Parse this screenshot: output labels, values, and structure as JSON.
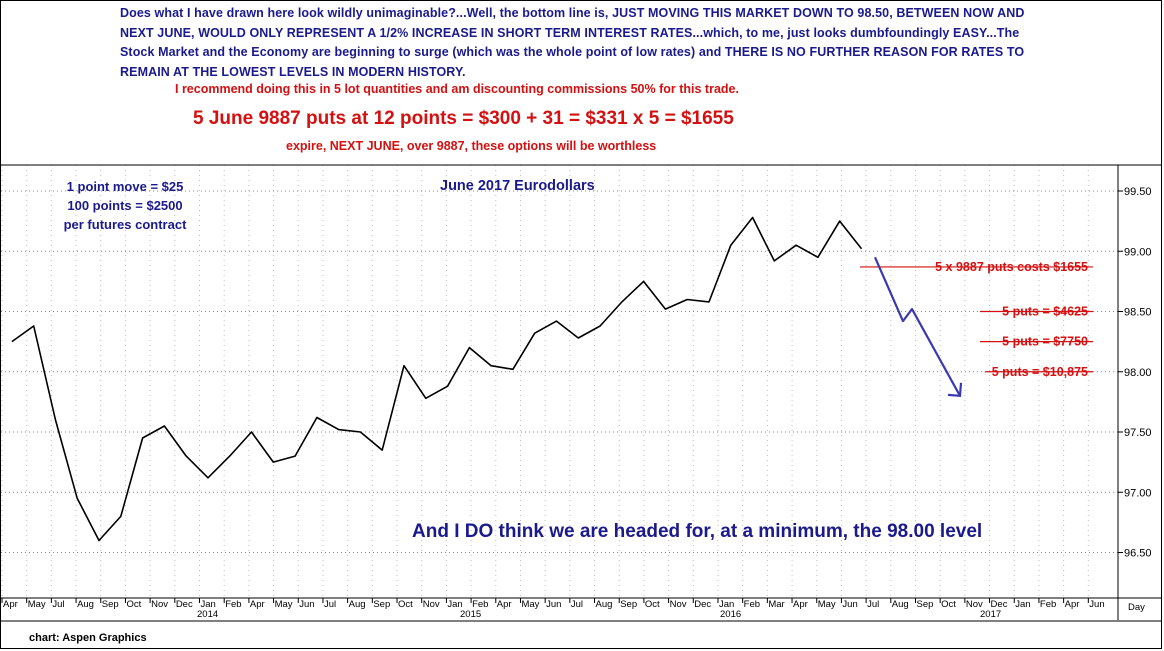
{
  "annotations": {
    "top_paragraph": "Does what I have drawn here look wildly unimaginable?...Well, the bottom line is, JUST MOVING THIS MARKET DOWN TO 98.50, BETWEEN NOW AND NEXT JUNE, WOULD ONLY REPRESENT A 1/2% INCREASE IN SHORT TERM INTEREST RATES...which, to me, just looks dumbfoundingly EASY...The Stock Market and the Economy are beginning to surge (which was the whole point of low rates) and THERE IS NO FURTHER REASON FOR RATES TO REMAIN AT THE LOWEST LEVELS IN MODERN HISTORY.",
    "recommendation": "I recommend doing this in 5 lot quantities and am discounting commissions 50% for this trade.",
    "trade": "5 June 9887 puts at 12 points = $300 + 31 = $331 x 5 = $1655",
    "expiry_note": "expire, NEXT JUNE, over 9887, these options will be worthless",
    "point_move_lines": [
      "1 point move = $25",
      "100 points = $2500",
      "per futures contract"
    ],
    "bottom_comment": "And I DO think we are headed for, at a minimum, the 98.00 level",
    "footer": "chart: Aspen Graphics"
  },
  "colors": {
    "price_line": "#000000",
    "annotation_blue": "#1a1a8c",
    "annotation_red": "#d41010",
    "projection_arrow": "#3a3ab0",
    "grid": "#888888"
  },
  "chart_data": {
    "type": "line",
    "title": "June 2017 Eurodollars",
    "xlabel": "Day",
    "ylabel": "",
    "ylim": [
      96.3,
      99.65
    ],
    "y_ticks": [
      "96.50",
      "97.00",
      "97.50",
      "98.00",
      "98.50",
      "99.00",
      "99.50"
    ],
    "grid": "dotted",
    "x_axis": {
      "month_labels": [
        "Apr",
        "May",
        "Jul",
        "Aug",
        "Sep",
        "Oct",
        "Nov",
        "Dec",
        "Jan",
        "Feb",
        "Apr",
        "May",
        "Jun",
        "Jul",
        "Aug",
        "Sep",
        "Oct",
        "Nov",
        "Jan",
        "Feb",
        "Apr",
        "May",
        "Jun",
        "Jul",
        "Aug",
        "Sep",
        "Oct",
        "Nov",
        "Dec",
        "Jan",
        "Feb",
        "Mar",
        "Apr",
        "May",
        "Jun",
        "Jul",
        "Aug",
        "Sep",
        "Oct",
        "Nov",
        "Dec",
        "Jan",
        "Feb",
        "Apr",
        "Jun"
      ],
      "year_labels": [
        "2014",
        "2015",
        "2016",
        "2017"
      ]
    },
    "series": [
      {
        "x": [
          "2013-04",
          "2013-05",
          "2013-06",
          "2013-07",
          "2013-08",
          "2013-09",
          "2013-10",
          "2013-11",
          "2013-12",
          "2014-01",
          "2014-02",
          "2014-03",
          "2014-04",
          "2014-05",
          "2014-06",
          "2014-07",
          "2014-08",
          "2014-09",
          "2014-10",
          "2014-11",
          "2014-12",
          "2015-01",
          "2015-02",
          "2015-03",
          "2015-04",
          "2015-05",
          "2015-06",
          "2015-07",
          "2015-08",
          "2015-09",
          "2015-10",
          "2015-11",
          "2015-12",
          "2016-01",
          "2016-02",
          "2016-03",
          "2016-04",
          "2016-05",
          "2016-06",
          "2016-07"
        ],
        "values": [
          98.25,
          98.38,
          97.6,
          96.95,
          96.6,
          96.8,
          97.45,
          97.55,
          97.3,
          97.12,
          97.3,
          97.5,
          97.25,
          97.3,
          97.62,
          97.52,
          97.5,
          97.35,
          98.05,
          97.78,
          97.88,
          98.2,
          98.05,
          98.02,
          98.32,
          98.42,
          98.28,
          98.38,
          98.58,
          98.75,
          98.52,
          98.6,
          98.58,
          99.05,
          99.28,
          98.92,
          99.05,
          98.95,
          99.25,
          99.02
        ]
      }
    ],
    "projection": {
      "levels": [
        {
          "label": "5 x 9887 puts costs $1655",
          "value": 98.87
        },
        {
          "label": "5 puts = $4625",
          "value": 98.5
        },
        {
          "label": "5 puts = $7750",
          "value": 98.25
        },
        {
          "label": "5 puts = $10,875",
          "value": 98.0
        }
      ],
      "arrow_path": [
        {
          "date": "2016-07",
          "value": 98.95
        },
        {
          "date": "2016-09",
          "value": 98.42
        },
        {
          "date": "2016-09",
          "value": 98.52
        },
        {
          "date": "2016-11",
          "value": 97.8
        }
      ]
    }
  }
}
